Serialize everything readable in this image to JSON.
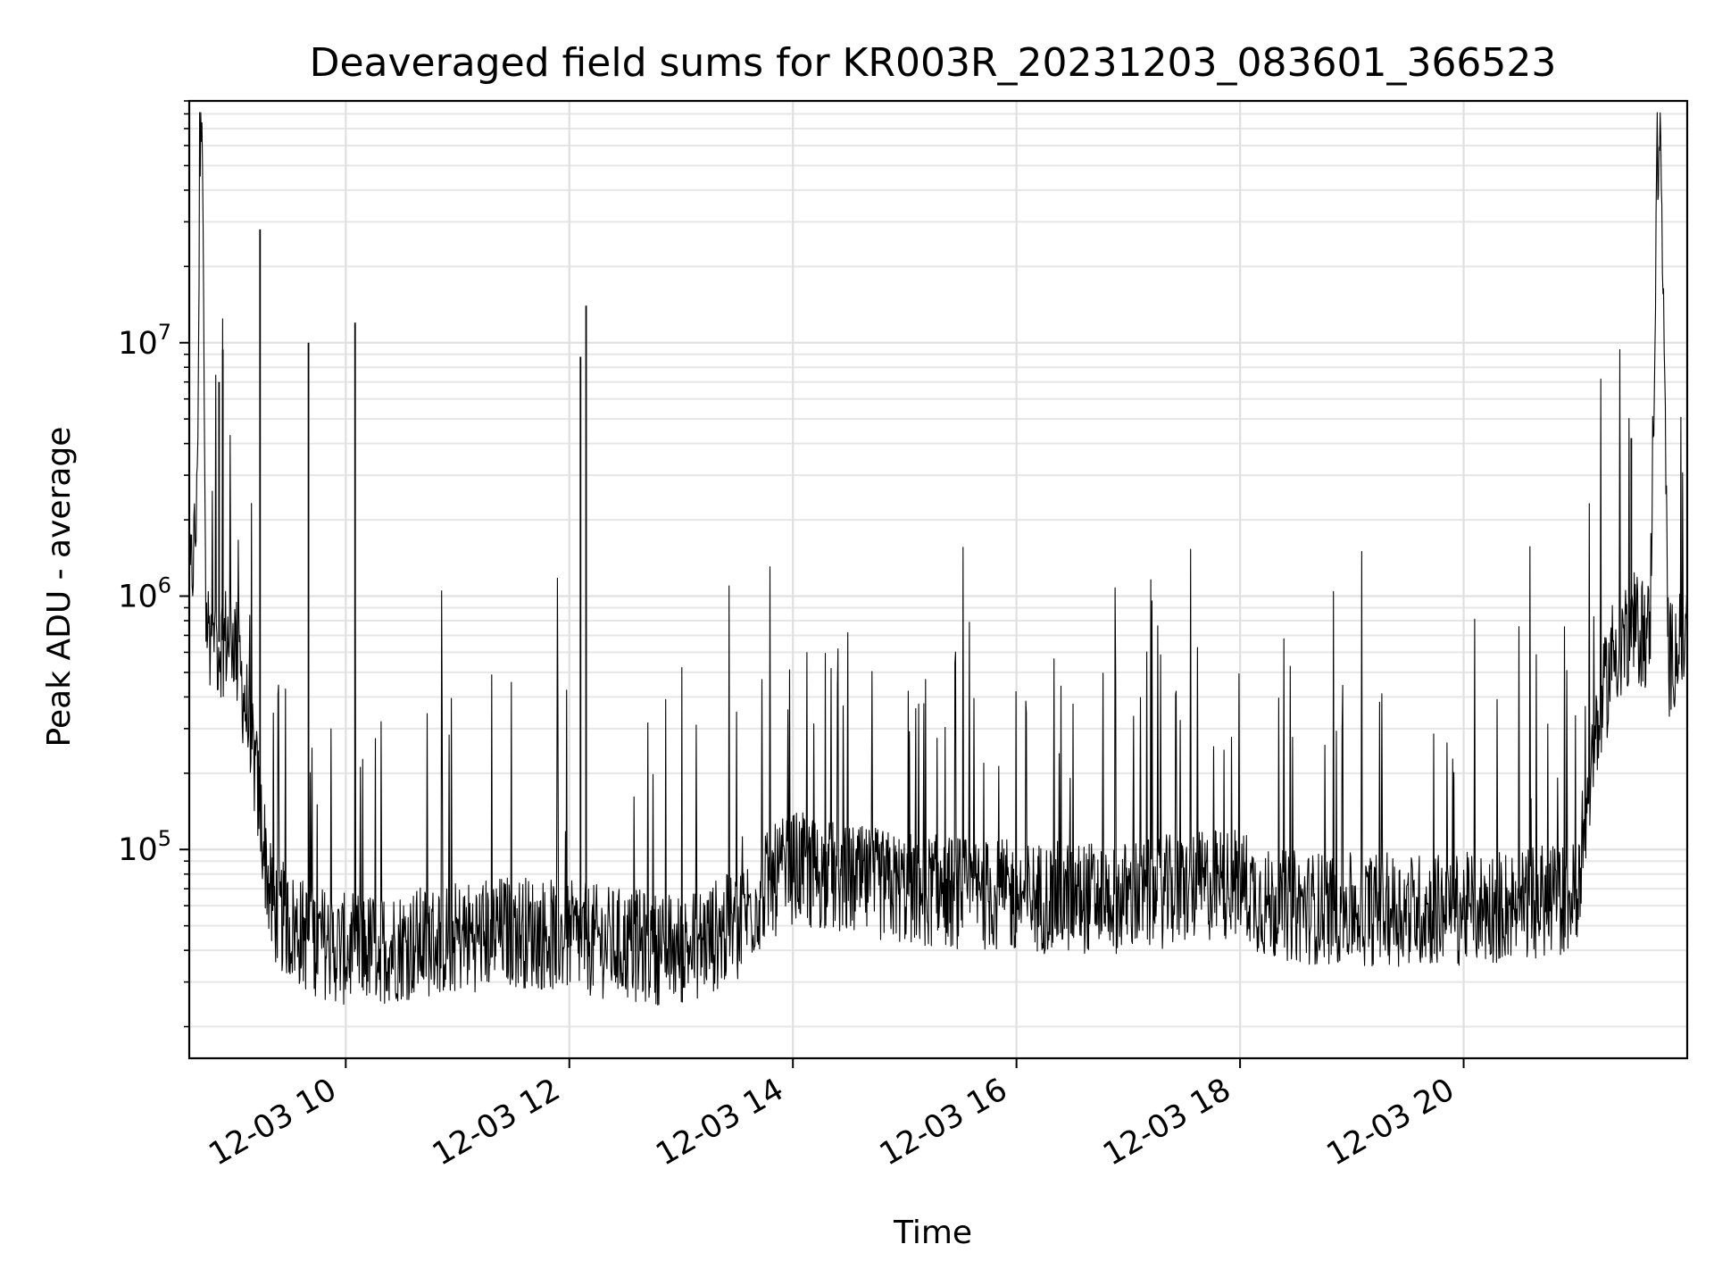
{
  "chart_data": {
    "type": "line",
    "title": "Deaveraged field sums for KR003R_20231203_083601_366523",
    "xlabel": "Time",
    "ylabel": "Peak ADU - average",
    "yscale": "log",
    "ylim": [
      15000,
      90000000
    ],
    "xlim": [
      "2023-12-03 08:36",
      "2023-12-03 22:00"
    ],
    "grid": true,
    "grid_minor": true,
    "line_color": "#000000",
    "x_ticks": [
      "12-03 10",
      "12-03 12",
      "12-03 14",
      "12-03 16",
      "12-03 18",
      "12-03 20"
    ],
    "y_ticks": [
      {
        "base": "10",
        "exp": "5",
        "value": 100000
      },
      {
        "base": "10",
        "exp": "6",
        "value": 1000000
      },
      {
        "base": "10",
        "exp": "7",
        "value": 10000000
      }
    ],
    "series": [
      {
        "x": [
          "2023-12-03 08:36",
          "2023-12-03 08:40",
          "2023-12-03 08:42",
          "2023-12-03 08:43",
          "2023-12-03 08:45",
          "2023-12-03 08:50",
          "2023-12-03 09:00",
          "2023-12-03 09:10",
          "2023-12-03 09:20",
          "2023-12-03 09:30",
          "2023-12-03 09:40",
          "2023-12-03 10:00",
          "2023-12-03 10:30",
          "2023-12-03 11:00",
          "2023-12-03 11:30",
          "2023-12-03 12:00",
          "2023-12-03 12:30",
          "2023-12-03 13:00",
          "2023-12-03 13:30",
          "2023-12-03 13:45",
          "2023-12-03 14:00",
          "2023-12-03 14:30",
          "2023-12-03 15:00",
          "2023-12-03 16:00",
          "2023-12-03 17:00",
          "2023-12-03 18:00",
          "2023-12-03 18:15",
          "2023-12-03 19:00",
          "2023-12-03 20:00",
          "2023-12-03 21:00",
          "2023-12-03 21:10",
          "2023-12-03 21:20",
          "2023-12-03 21:30",
          "2023-12-03 21:40",
          "2023-12-03 21:44",
          "2023-12-03 21:46",
          "2023-12-03 21:50",
          "2023-12-03 21:55",
          "2023-12-03 22:00"
        ],
        "y": [
          1000000,
          2000000,
          60000000,
          60000000,
          800000,
          650000,
          700000,
          250000,
          60000,
          50000,
          45000,
          40000,
          42000,
          45000,
          48000,
          45000,
          42000,
          40000,
          50000,
          70000,
          85000,
          75000,
          70000,
          65000,
          65000,
          75000,
          60000,
          58000,
          58000,
          65000,
          250000,
          600000,
          750000,
          700000,
          55000000,
          50000000,
          550000,
          650000,
          700000
        ]
      }
    ],
    "spikes": [
      {
        "x": "2023-12-03 08:52",
        "y": 7000000
      },
      {
        "x": "2023-12-03 08:54",
        "y": 9400000
      },
      {
        "x": "2023-12-03 09:14",
        "y": 28000000
      },
      {
        "x": "2023-12-03 09:40",
        "y": 10000000
      },
      {
        "x": "2023-12-03 10:05",
        "y": 12000000
      },
      {
        "x": "2023-12-03 12:06",
        "y": 8800000
      },
      {
        "x": "2023-12-03 12:09",
        "y": 14000000
      },
      {
        "x": "2023-12-03 21:30",
        "y": 4200000
      }
    ]
  }
}
